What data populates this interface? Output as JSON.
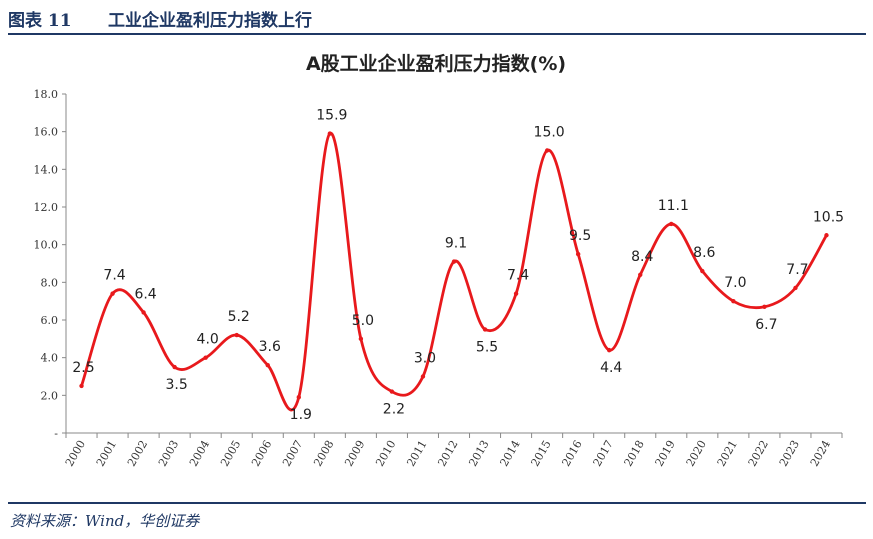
{
  "header": {
    "figure_number": "图表 11",
    "title": "工业企业盈利压力指数上行"
  },
  "source": "资料来源：Wind，华创证券",
  "chart_data": {
    "type": "line",
    "title": "A股工业企业盈利压力指数(%)",
    "xlabel": "",
    "ylabel": "",
    "ylim": [
      0,
      18
    ],
    "yticks": [
      "-",
      "2.0",
      "4.0",
      "6.0",
      "8.0",
      "10.0",
      "12.0",
      "14.0",
      "16.0",
      "18.0"
    ],
    "categories": [
      "2000",
      "2001",
      "2002",
      "2003",
      "2004",
      "2005",
      "2006",
      "2007",
      "2008",
      "2009",
      "2010",
      "2011",
      "2012",
      "2013",
      "2014",
      "2015",
      "2016",
      "2017",
      "2018",
      "2019",
      "2020",
      "2021",
      "2022",
      "2023",
      "2024"
    ],
    "series": [
      {
        "values": [
          2.5,
          7.4,
          6.4,
          3.5,
          4.0,
          5.2,
          3.6,
          1.9,
          15.9,
          5.0,
          2.2,
          3.0,
          9.1,
          5.5,
          7.4,
          15.0,
          9.5,
          4.4,
          8.4,
          11.1,
          8.6,
          7.0,
          6.7,
          7.7,
          10.5
        ],
        "labels": [
          "2.5",
          "7.4",
          "6.4",
          "3.5",
          "4.0",
          "5.2",
          "3.6",
          "1.9",
          "15.9",
          "5.0",
          "2.2",
          "3.0",
          "9.1",
          "5.5",
          "7.4",
          "15.0",
          "9.5",
          "4.4",
          "8.4",
          "11.1",
          "8.6",
          "7.0",
          "6.7",
          "7.7",
          "10.5"
        ],
        "color": "#e8191c"
      }
    ],
    "grid": false,
    "legend": "none"
  }
}
